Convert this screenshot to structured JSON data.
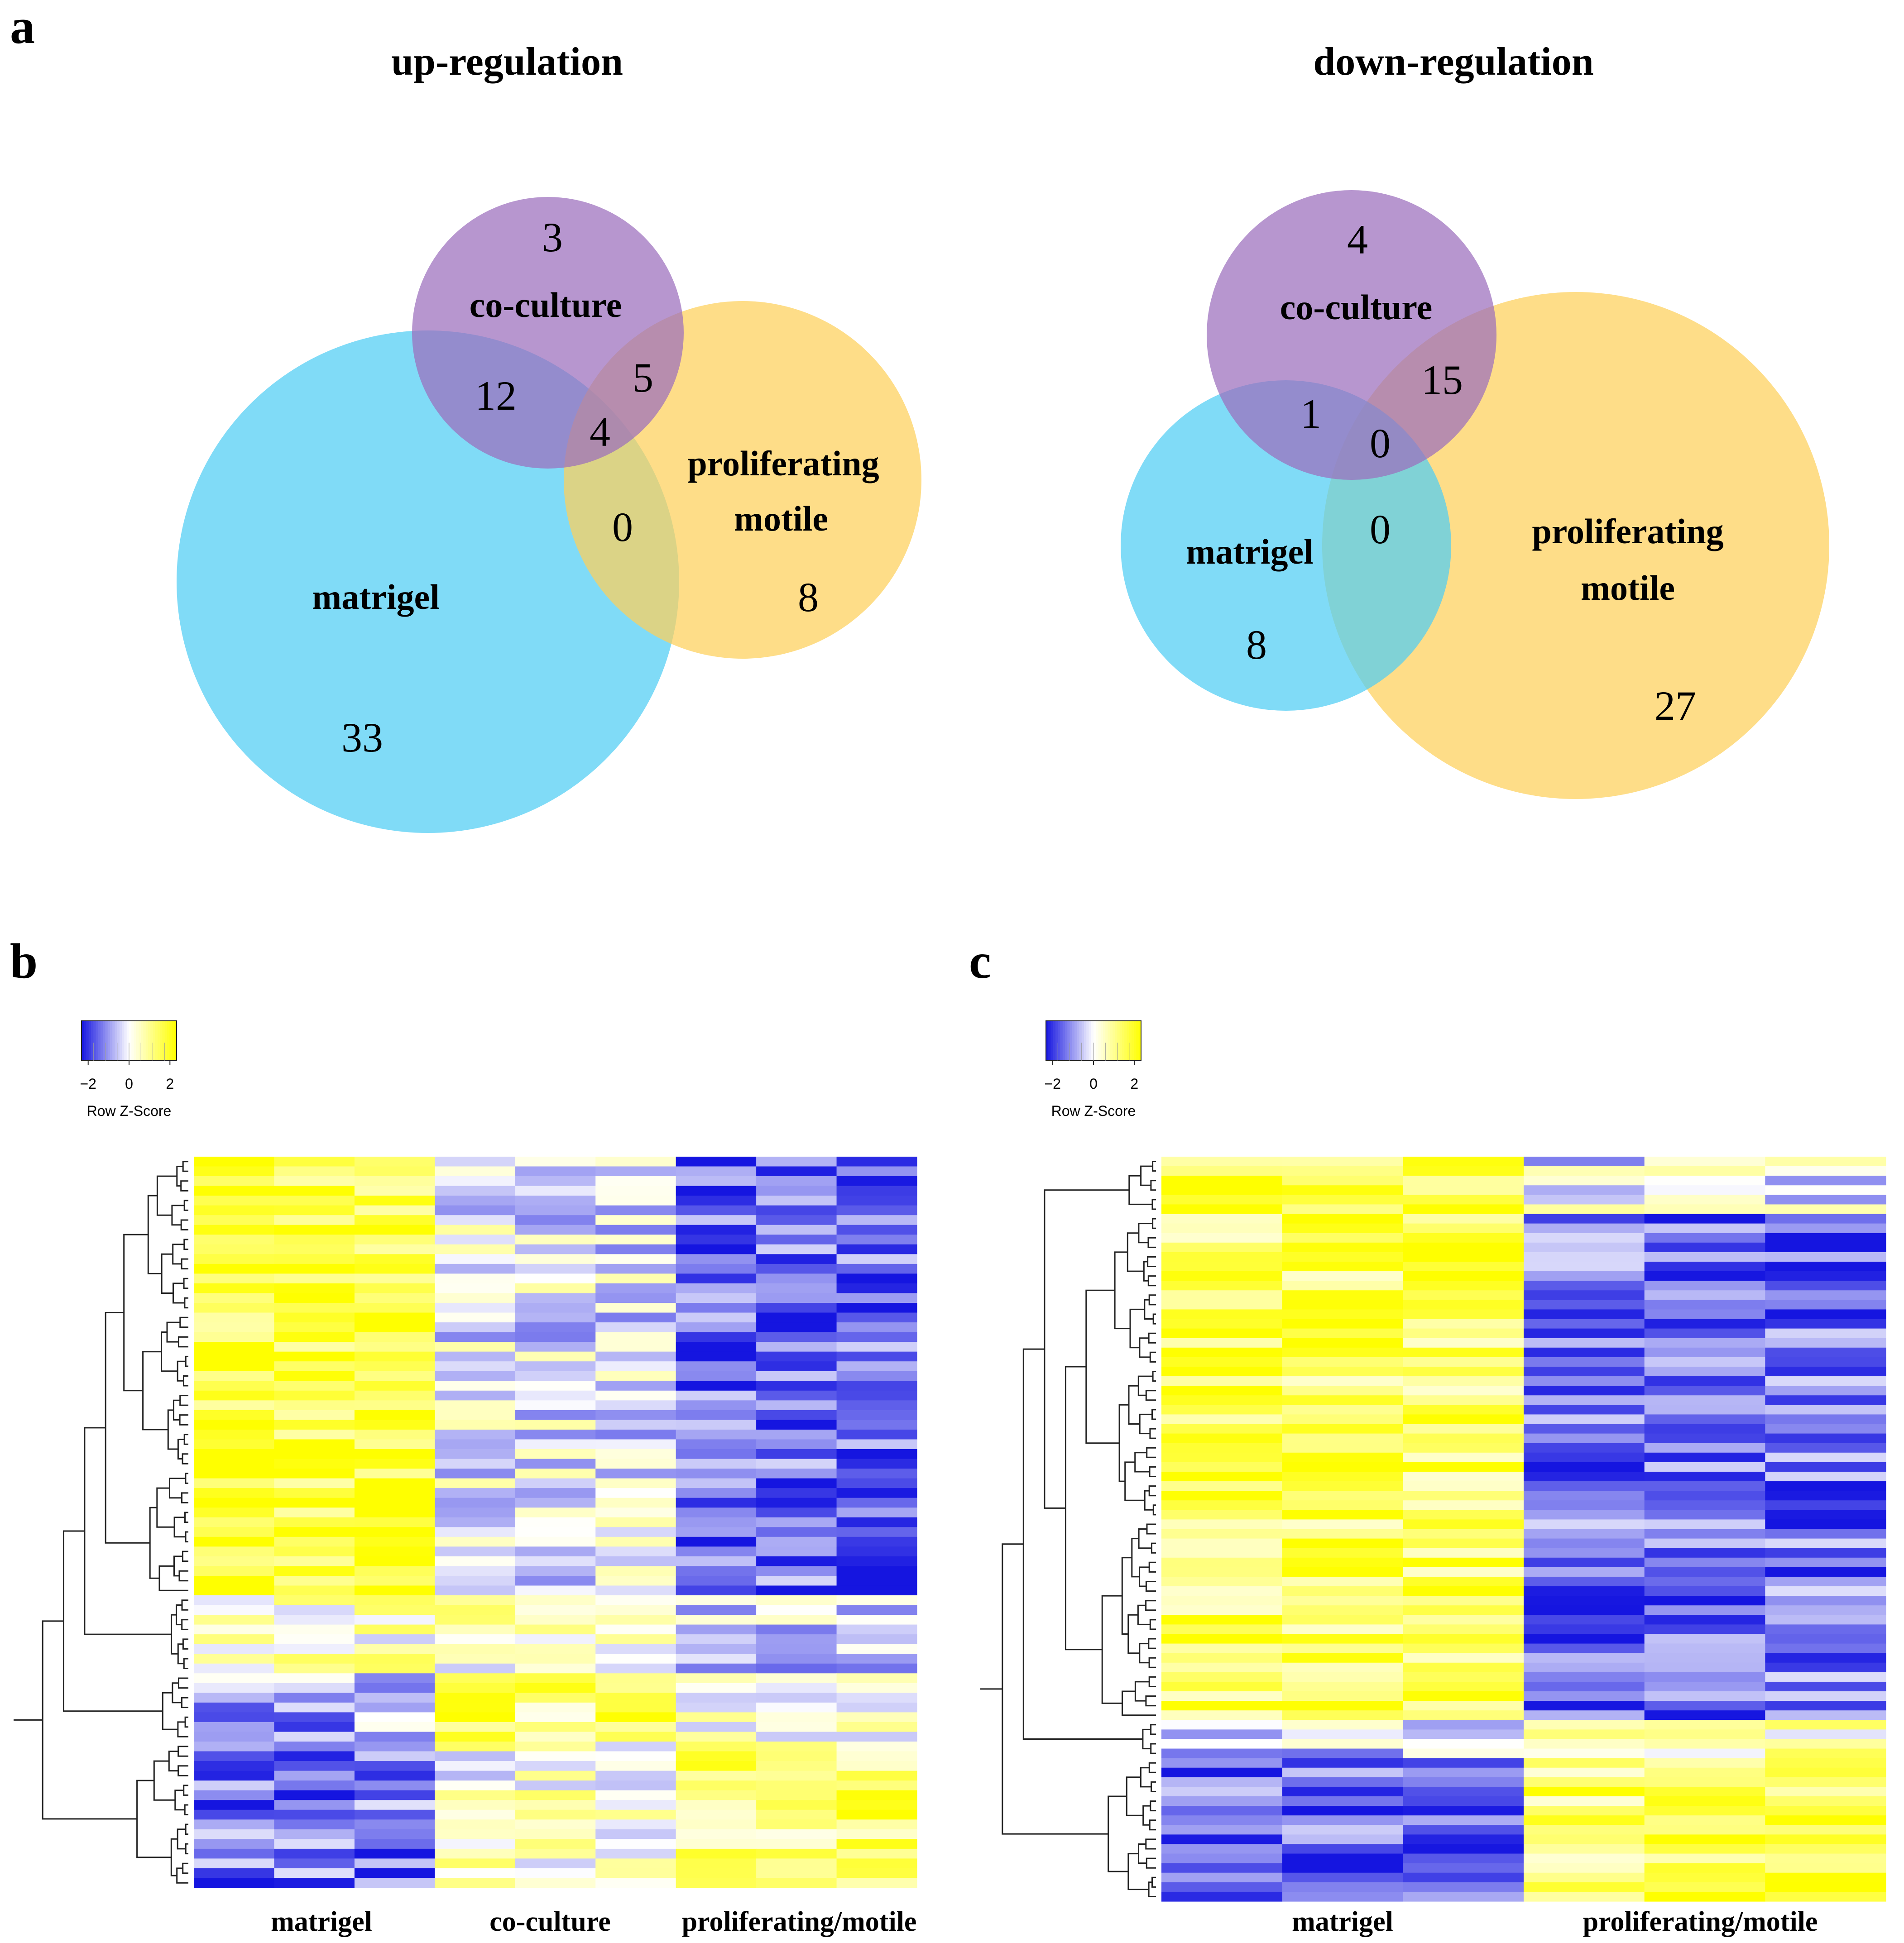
{
  "panels": {
    "a": "a",
    "b": "b",
    "c": "c"
  },
  "colors": {
    "matrigel": "#4fcdf4",
    "coculture": "#9b6dbc",
    "prolif": "#fdd05a",
    "heat_low": "#1515e0",
    "heat_mid": "#ffffff",
    "heat_high": "#ffff00"
  },
  "chart_data": [
    {
      "type": "venn",
      "title": "up-regulation",
      "sets": [
        {
          "name": "co-culture",
          "only": 3
        },
        {
          "name": "matrigel",
          "only": 33
        },
        {
          "name": "proliferating motile",
          "name_lines": [
            "proliferating",
            "motile"
          ],
          "only": 8
        }
      ],
      "overlaps": {
        "coculture_matrigel": 12,
        "coculture_prolif": 5,
        "matrigel_prolif": 0,
        "all_three": 4
      }
    },
    {
      "type": "venn",
      "title": "down-regulation",
      "sets": [
        {
          "name": "co-culture",
          "only": 4
        },
        {
          "name": "matrigel",
          "only": 8
        },
        {
          "name": "proliferating motile",
          "name_lines": [
            "proliferating",
            "motile"
          ],
          "only": 27
        }
      ],
      "overlaps": {
        "coculture_matrigel": 1,
        "coculture_prolif": 15,
        "matrigel_prolif": 0,
        "all_three": 0
      }
    },
    {
      "type": "heatmap",
      "panel": "b",
      "legend_title": "Row Z-Score",
      "legend_ticks": [
        "−2",
        "0",
        "2"
      ],
      "zlim": [
        -2,
        2
      ],
      "columns": 9,
      "rows": 75,
      "group_labels": [
        "matrigel",
        "co-culture",
        "proliferating/motile"
      ],
      "group_sizes": [
        3,
        3,
        3
      ],
      "row_profiles": [
        {
          "rows": 45,
          "group_means": [
            1.6,
            -0.2,
            -1.3
          ]
        },
        {
          "rows": 8,
          "group_means": [
            0.4,
            0.3,
            -0.4
          ]
        },
        {
          "rows": 7,
          "group_means": [
            -0.8,
            1.1,
            0.2
          ]
        },
        {
          "rows": 15,
          "group_means": [
            -1.2,
            0.3,
            1.1
          ]
        }
      ],
      "seed": 7
    },
    {
      "type": "heatmap",
      "panel": "c",
      "legend_title": "Row Z-Score",
      "legend_ticks": [
        "−2",
        "0",
        "2"
      ],
      "zlim": [
        -2,
        2
      ],
      "columns": 6,
      "rows": 78,
      "group_labels": [
        "matrigel",
        "proliferating/motile"
      ],
      "group_sizes": [
        3,
        3
      ],
      "row_profiles": [
        {
          "rows": 6,
          "group_means": [
            1.3,
            -0.2
          ]
        },
        {
          "rows": 53,
          "group_means": [
            1.3,
            -1.2
          ]
        },
        {
          "rows": 4,
          "group_means": [
            -0.4,
            0.6
          ]
        },
        {
          "rows": 15,
          "group_means": [
            -1.3,
            1.2
          ]
        }
      ],
      "seed": 11
    }
  ]
}
